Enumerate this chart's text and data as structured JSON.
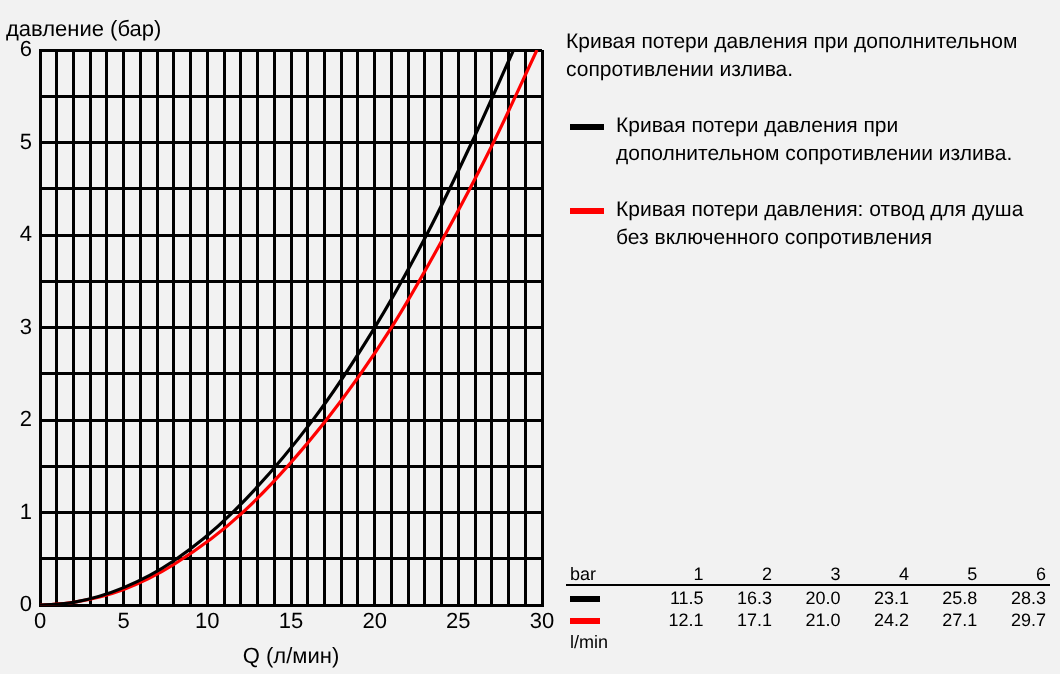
{
  "chart_data": {
    "type": "line",
    "ylabel": "давление (бар)",
    "xlabel": "Q (л/мин)",
    "annotations": [
      "Кривая потери давления при дополнительном сопротивлении излива.",
      "bar",
      "1",
      "2",
      "3",
      "4",
      "5",
      "6",
      "11.5",
      "16.3",
      "20.0",
      "23.1",
      "25.8",
      "28.3",
      "12.1",
      "17.1",
      "21.0",
      "24.2",
      "27.1",
      "29.7",
      "l/min"
    ],
    "xlim": [
      0,
      30
    ],
    "ylim": [
      0,
      6
    ],
    "xticks": [
      0,
      {
        "value": 1,
        "label": null
      },
      {
        "value": 2,
        "label": null
      },
      {
        "value": 3,
        "label": null
      },
      {
        "value": 4,
        "label": null
      },
      5,
      {
        "value": 6,
        "label": null
      },
      {
        "value": 7,
        "label": null
      },
      {
        "value": 8,
        "label": null
      },
      {
        "value": 9,
        "label": null
      },
      10,
      {
        "value": 11,
        "label": null
      },
      {
        "value": 12,
        "label": null
      },
      {
        "value": 13,
        "label": null
      },
      {
        "value": 14,
        "label": null
      },
      15,
      {
        "value": 16,
        "label": null
      },
      {
        "value": 17,
        "label": null
      },
      {
        "value": 18,
        "label": null
      },
      {
        "value": 19,
        "label": null
      },
      20,
      {
        "value": 21,
        "label": null
      },
      {
        "value": 22,
        "label": null
      },
      {
        "value": 23,
        "label": null
      },
      {
        "value": 24,
        "label": null
      },
      25,
      {
        "value": 26,
        "label": null
      },
      {
        "value": 27,
        "label": null
      },
      {
        "value": 28,
        "label": null
      },
      {
        "value": 29,
        "label": null
      },
      30
    ],
    "yticks": [
      0,
      {
        "value": 0.5,
        "label": null
      },
      1,
      {
        "value": 1.5,
        "label": null
      },
      2,
      {
        "value": 2.5,
        "label": null
      },
      3,
      {
        "value": 3.5,
        "label": null
      },
      4,
      {
        "value": 4.5,
        "label": null
      },
      5,
      {
        "value": 5.5,
        "label": null
      },
      6
    ],
    "grid": true,
    "legend": "right",
    "marker": "none",
    "line_style": "solid",
    "series": [
      {
        "name": "Кривая потери давления при дополнительном сопротивлении излива.",
        "color": "#000000",
        "x": [
          0,
          2,
          5,
          8,
          11.5,
          16.3,
          20.0,
          23.1,
          25.8,
          28.3
        ],
        "values": [
          0,
          0.03,
          0.19,
          0.48,
          1,
          2,
          3,
          4,
          5,
          6
        ]
      },
      {
        "name": "Кривая потери давления: отвод для душа без включенного сопротивления",
        "color": "#ff0000",
        "x": [
          0,
          2,
          5,
          8,
          12.1,
          17.1,
          21.0,
          24.2,
          27.1,
          29.7
        ],
        "values": [
          0,
          0.03,
          0.17,
          0.44,
          1,
          2,
          3,
          4,
          5,
          6
        ]
      }
    ]
  }
}
